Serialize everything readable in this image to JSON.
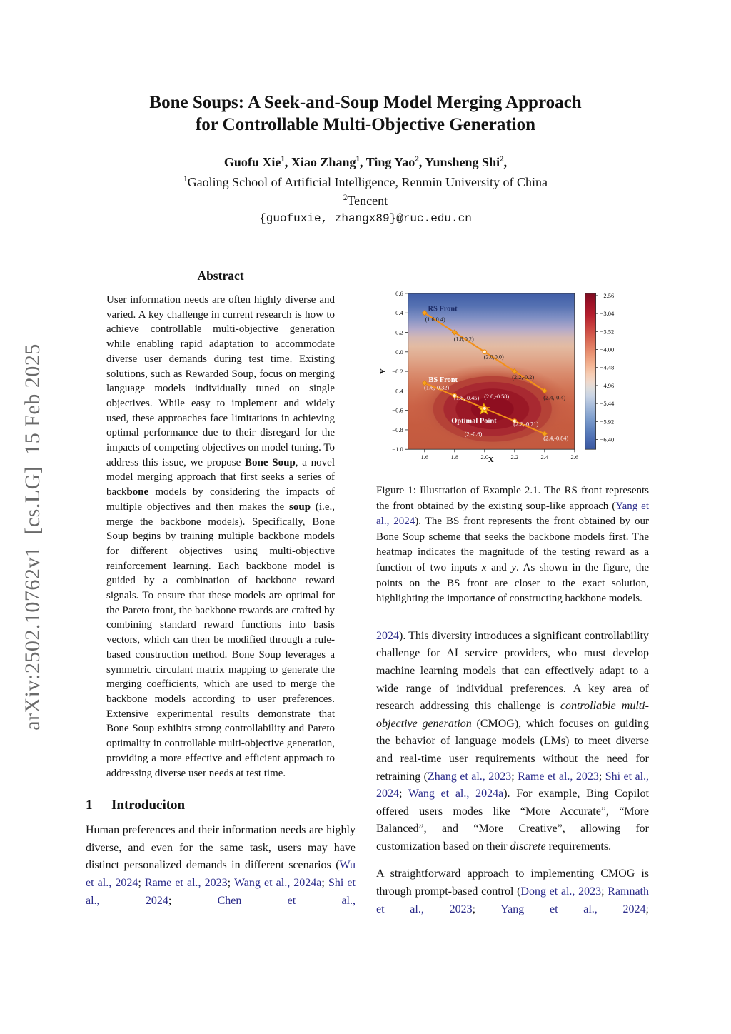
{
  "arxiv_watermark": "arXiv:2502.10762v1  [cs.LG]  15 Feb 2025",
  "header": {
    "title_line1": "Bone Soups: A Seek-and-Soup Model Merging Approach",
    "title_line2": "for Controllable Multi-Objective Generation",
    "authors": [
      {
        "name": "Guofu Xie",
        "sup": "1",
        "sep": ", "
      },
      {
        "name": "Xiao Zhang",
        "sup": "1",
        "sep": ", "
      },
      {
        "name": "Ting Yao",
        "sup": "2",
        "sep": ", "
      },
      {
        "name": "Yunsheng Shi",
        "sup": "2",
        "sep": ","
      }
    ],
    "affiliations": [
      {
        "sup": "1",
        "text": "Gaoling School of Artificial Intelligence, Renmin University of China"
      },
      {
        "sup": "2",
        "text": "Tencent"
      }
    ],
    "email": "{guofuxie, zhangx89}@ruc.edu.cn"
  },
  "abstract": {
    "heading": "Abstract",
    "segments": [
      {
        "style": "normal",
        "text": "User information needs are often highly diverse and varied. A key challenge in current research is how to achieve controllable multi-objective generation while enabling rapid adaptation to accommodate diverse user demands during test time. Existing solutions, such as Rewarded Soup, focus on merging language models individually tuned on single objectives. While easy to implement and widely used, these approaches face limitations in achieving optimal performance due to their disregard for the impacts of competing objectives on model tuning. To address this issue, we propose "
      },
      {
        "style": "bold",
        "text": "Bone Soup"
      },
      {
        "style": "normal",
        "text": ", a novel model merging approach that first seeks a series of back"
      },
      {
        "style": "bold",
        "text": "bone"
      },
      {
        "style": "normal",
        "text": " models by considering the impacts of multiple objectives and then makes the "
      },
      {
        "style": "bold",
        "text": "soup"
      },
      {
        "style": "normal",
        "text": " (i.e., merge the backbone models). Specifically, Bone Soup begins by training multiple backbone models for different objectives using multi-objective reinforcement learning. Each backbone model is guided by a combination of backbone reward signals. To ensure that these models are optimal for the Pareto front, the backbone rewards are crafted by combining standard reward functions into basis vectors, which can then be modified through a rule-based construction method. Bone Soup leverages a symmetric circulant matrix mapping to generate the merging coefficients, which are used to merge the backbone models according to user preferences. Extensive experimental results demonstrate that Bone Soup exhibits strong controllability and Pareto optimality in controllable multi-objective generation, providing a more effective and efficient approach to addressing diverse user needs at test time."
      }
    ]
  },
  "sections": {
    "intro": {
      "number": "1",
      "title": "Introduciton"
    }
  },
  "intro_paragraph": {
    "segments": [
      {
        "style": "normal",
        "text": "Human preferences and their information needs are highly diverse, and even for the same task, users may have distinct personalized demands in different scenarios ("
      },
      {
        "style": "cite",
        "text": "Wu et al., 2024"
      },
      {
        "style": "normal",
        "text": "; "
      },
      {
        "style": "cite",
        "text": "Rame et al., 2023"
      },
      {
        "style": "normal",
        "text": "; "
      },
      {
        "style": "cite",
        "text": "Wang et al., 2024a"
      },
      {
        "style": "normal",
        "text": "; "
      },
      {
        "style": "cite",
        "text": "Shi et al., 2024"
      },
      {
        "style": "normal",
        "text": "; "
      },
      {
        "style": "cite",
        "text": "Chen et al.,"
      }
    ]
  },
  "figure_caption": {
    "segments": [
      {
        "style": "normal",
        "text": "Figure 1: Illustration of Example 2.1.  The RS front represents the front obtained by the existing soup-like approach ("
      },
      {
        "style": "cite",
        "text": "Yang et al., 2024"
      },
      {
        "style": "normal",
        "text": "). The BS front represents the front obtained by our Bone Soup scheme that seeks the backbone models first. The heatmap indicates the magnitude of the testing reward as a function of two inputs "
      },
      {
        "style": "math",
        "text": "x"
      },
      {
        "style": "normal",
        "text": " and "
      },
      {
        "style": "math",
        "text": "y"
      },
      {
        "style": "normal",
        "text": ". As shown in the figure, the points on the BS front are closer to the exact solution, highlighting the importance of constructing backbone models."
      }
    ]
  },
  "right_column": {
    "paragraph1": {
      "segments": [
        {
          "style": "cite",
          "text": "2024"
        },
        {
          "style": "normal",
          "text": "). This diversity introduces a significant controllability challenge for AI service providers, who must develop machine learning models that can effectively adapt to a wide range of individual preferences.  A key area of research addressing this challenge is "
        },
        {
          "style": "italic",
          "text": "controllable multi-objective generation"
        },
        {
          "style": "normal",
          "text": " (CMOG), which focuses on guiding the behavior of language models (LMs) to meet diverse and real-time user requirements without the need for retraining ("
        },
        {
          "style": "cite",
          "text": "Zhang et al., 2023"
        },
        {
          "style": "normal",
          "text": "; "
        },
        {
          "style": "cite",
          "text": "Rame et al., 2023"
        },
        {
          "style": "normal",
          "text": "; "
        },
        {
          "style": "cite",
          "text": "Shi et al., 2024"
        },
        {
          "style": "normal",
          "text": "; "
        },
        {
          "style": "cite",
          "text": "Wang et al., 2024a"
        },
        {
          "style": "normal",
          "text": "). For example, Bing Copilot offered users modes like “More Accurate”, “More Balanced”, and “More Creative”, allowing for customization based on their "
        },
        {
          "style": "italic",
          "text": "discrete"
        },
        {
          "style": "normal",
          "text": " requirements."
        }
      ]
    },
    "paragraph2": {
      "segments": [
        {
          "style": "normal",
          "text": "A straightforward approach to implementing CMOG is through prompt-based control ("
        },
        {
          "style": "cite",
          "text": "Dong et al., 2023"
        },
        {
          "style": "normal",
          "text": "; "
        },
        {
          "style": "cite",
          "text": "Ramnath et al., 2023"
        },
        {
          "style": "normal",
          "text": "; "
        },
        {
          "style": "cite",
          "text": "Yang et al., 2024"
        },
        {
          "style": "normal",
          "text": ";"
        }
      ]
    }
  },
  "chart_data": {
    "type": "line",
    "xlabel": "X",
    "ylabel": "Y",
    "xlim": [
      1.49,
      2.6
    ],
    "ylim": [
      -1.0,
      0.6
    ],
    "xticks": [
      "1.6",
      "1.8",
      "2.0",
      "2.2",
      "2.4",
      "2.6"
    ],
    "yticks": [
      "0.6",
      "0.4",
      "0.2",
      "0.0",
      "−0.2",
      "−0.4",
      "−0.6",
      "−0.8",
      "−1.0"
    ],
    "series": [
      {
        "name": "RS Front",
        "label_style": "dark",
        "points": [
          {
            "x": 1.6,
            "y": 0.4,
            "label": "(1.6,0.4)",
            "open": false
          },
          {
            "x": 1.8,
            "y": 0.2,
            "label": "(1.8,0.2)",
            "open": false
          },
          {
            "x": 2.0,
            "y": 0.0,
            "label": "(2.0,0.0)",
            "open": true
          },
          {
            "x": 2.2,
            "y": -0.2,
            "label": "(2.2,-0.2)",
            "open": false
          },
          {
            "x": 2.4,
            "y": -0.4,
            "label": "(2.4,-0.4)",
            "open": false
          }
        ]
      },
      {
        "name": "BS Front",
        "label_style": "white",
        "points": [
          {
            "x": 1.6,
            "y": -0.32,
            "label": "(1.6,-0.32)",
            "open": false
          },
          {
            "x": 1.8,
            "y": -0.45,
            "label": "(1.8,-0.45)",
            "open": true
          },
          {
            "x": 2.0,
            "y": -0.58,
            "label": "(2.0,-0.58)",
            "open": true
          },
          {
            "x": 2.2,
            "y": -0.71,
            "label": "(2.2,-0.71)",
            "open": true
          },
          {
            "x": 2.4,
            "y": -0.84,
            "label": "(2.4,-0.84)",
            "open": false
          }
        ]
      }
    ],
    "optimal_point": {
      "x": 2.0,
      "y": -0.6,
      "label": "Optimal Point",
      "coords": "(2,-0.6)"
    },
    "colorbar_ticks": [
      "−2.56",
      "−3.04",
      "−3.52",
      "−4.00",
      "−4.48",
      "−4.96",
      "−5.44",
      "−5.92",
      "−6.40"
    ],
    "line_color": "#f39019",
    "heatmap_low_color": "#415ea7",
    "heatmap_high_color": "#8e0e20",
    "legend_position": "none",
    "grid": false
  }
}
